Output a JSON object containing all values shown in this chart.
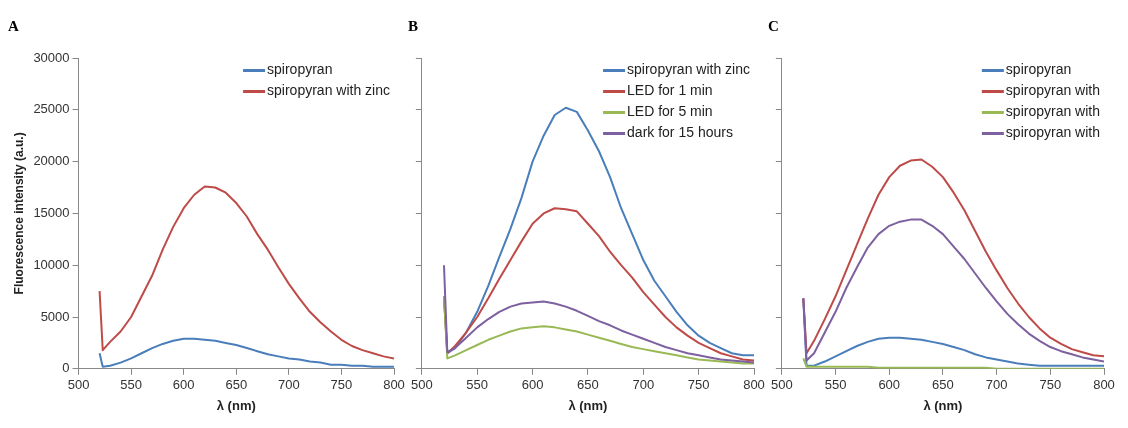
{
  "chart_data": [
    {
      "type": "line",
      "title": "A",
      "xlabel": "λ (nm)",
      "ylabel": "Fluorescence intensity (a.u.)",
      "xlim": [
        500,
        800
      ],
      "xticks": [
        500,
        550,
        600,
        650,
        700,
        750,
        800
      ],
      "ylim": [
        0,
        30000
      ],
      "yticks": [
        0,
        5000,
        10000,
        15000,
        20000,
        25000,
        30000
      ],
      "grid": false,
      "legend": "top right",
      "marker": "none",
      "x": [
        520,
        523,
        530,
        540,
        550,
        560,
        570,
        580,
        590,
        600,
        610,
        620,
        630,
        640,
        650,
        660,
        670,
        680,
        690,
        700,
        710,
        720,
        730,
        740,
        750,
        760,
        770,
        780,
        790,
        800
      ],
      "series": [
        {
          "name": "spiropyran",
          "color": "#4a7ebb",
          "values": [
            1500,
            200,
            300,
            600,
            1000,
            1500,
            2000,
            2400,
            2700,
            2900,
            2900,
            2800,
            2700,
            2500,
            2300,
            2000,
            1700,
            1400,
            1200,
            1000,
            900,
            700,
            600,
            400,
            400,
            300,
            300,
            200,
            200,
            200
          ]
        },
        {
          "name": "spiropyran with zinc",
          "color": "#be4b48",
          "values": [
            7500,
            1800,
            2600,
            3600,
            5000,
            7000,
            9000,
            11500,
            13700,
            15500,
            16800,
            17600,
            17500,
            17000,
            16000,
            14700,
            13000,
            11500,
            9800,
            8200,
            6800,
            5500,
            4500,
            3600,
            2800,
            2200,
            1800,
            1500,
            1200,
            1000
          ]
        }
      ]
    },
    {
      "type": "line",
      "title": "B",
      "xlabel": "λ (nm)",
      "xlim": [
        500,
        800
      ],
      "xticks": [
        500,
        550,
        600,
        650,
        700,
        750,
        800
      ],
      "ylim": [
        0,
        30000
      ],
      "yticks": [
        0,
        5000,
        10000,
        15000,
        20000,
        25000,
        30000
      ],
      "tick_labels": "x",
      "grid": false,
      "legend": "top right",
      "marker": "none",
      "x": [
        520,
        523,
        530,
        540,
        550,
        560,
        570,
        580,
        590,
        600,
        610,
        620,
        630,
        640,
        650,
        660,
        670,
        680,
        690,
        700,
        710,
        720,
        730,
        740,
        750,
        760,
        770,
        780,
        790,
        800
      ],
      "series": [
        {
          "name": "spiropyran with zinc",
          "color": "#4a7ebb",
          "values": [
            7000,
            1500,
            2000,
            3500,
            5500,
            8000,
            10800,
            13500,
            16500,
            20000,
            22500,
            24500,
            25200,
            24800,
            23000,
            21000,
            18500,
            15500,
            13000,
            10500,
            8500,
            7000,
            5500,
            4200,
            3200,
            2500,
            2000,
            1500,
            1300,
            1300
          ]
        },
        {
          "name": "LED for 1 min",
          "color": "#be4b48",
          "values": [
            7000,
            1500,
            2200,
            3500,
            5000,
            6800,
            8700,
            10500,
            12300,
            14000,
            15000,
            15500,
            15400,
            15200,
            14000,
            12800,
            11300,
            10000,
            8800,
            7400,
            6200,
            5000,
            4000,
            3200,
            2500,
            2000,
            1500,
            1200,
            900,
            800
          ]
        },
        {
          "name": "LED for 5 min",
          "color": "#98b954",
          "values": [
            7000,
            1000,
            1300,
            1800,
            2300,
            2800,
            3200,
            3600,
            3900,
            4000,
            4100,
            4000,
            3800,
            3600,
            3300,
            3000,
            2700,
            2400,
            2100,
            1900,
            1700,
            1500,
            1300,
            1100,
            900,
            800,
            700,
            600,
            500,
            500
          ]
        },
        {
          "name": "dark for 15 hours",
          "color": "#7d60a0",
          "values": [
            10000,
            1600,
            2000,
            3000,
            4000,
            4800,
            5500,
            6000,
            6300,
            6400,
            6500,
            6300,
            6000,
            5600,
            5100,
            4600,
            4200,
            3700,
            3300,
            2900,
            2500,
            2100,
            1800,
            1500,
            1300,
            1100,
            900,
            800,
            700,
            600
          ]
        }
      ]
    },
    {
      "type": "line",
      "title": "C",
      "xlabel": "λ (nm)",
      "xlim": [
        500,
        800
      ],
      "xticks": [
        500,
        550,
        600,
        650,
        700,
        750,
        800
      ],
      "ylim": [
        0,
        30000
      ],
      "yticks": [
        0,
        5000,
        10000,
        15000,
        20000,
        25000,
        30000
      ],
      "tick_labels": "x",
      "grid": false,
      "legend": "top right",
      "marker": "none",
      "x": [
        520,
        523,
        530,
        540,
        550,
        560,
        570,
        580,
        590,
        600,
        610,
        620,
        630,
        640,
        650,
        660,
        670,
        680,
        690,
        700,
        710,
        720,
        730,
        740,
        750,
        760,
        770,
        780,
        790,
        800
      ],
      "series": [
        {
          "name": "spiropyran",
          "color": "#4a7ebb",
          "values": [
            6800,
            300,
            300,
            700,
            1200,
            1700,
            2200,
            2600,
            2900,
            3000,
            3000,
            2900,
            2800,
            2600,
            2400,
            2100,
            1800,
            1400,
            1100,
            900,
            700,
            500,
            400,
            300,
            300,
            300,
            300,
            300,
            300,
            300
          ]
        },
        {
          "name": "spiropyran with",
          "color": "#be4b48",
          "values": [
            6800,
            1500,
            2700,
            4800,
            7000,
            9500,
            12000,
            14500,
            16800,
            18500,
            19600,
            20100,
            20200,
            19500,
            18500,
            17000,
            15300,
            13300,
            11300,
            9500,
            7800,
            6300,
            5000,
            3900,
            3000,
            2400,
            1900,
            1600,
            1300,
            1200
          ]
        },
        {
          "name": "spiropyran with",
          "color": "#98b954",
          "values": [
            1000,
            200,
            200,
            200,
            200,
            200,
            200,
            200,
            100,
            100,
            100,
            100,
            100,
            100,
            100,
            100,
            100,
            100,
            100,
            0,
            0,
            0,
            0,
            0,
            0,
            0,
            0,
            0,
            0,
            0
          ]
        },
        {
          "name": "spiropyran with",
          "color": "#7d60a0",
          "values": [
            6800,
            800,
            1500,
            3500,
            5500,
            7800,
            9800,
            11700,
            13000,
            13800,
            14200,
            14400,
            14400,
            13800,
            13000,
            11800,
            10600,
            9200,
            7800,
            6500,
            5300,
            4300,
            3400,
            2700,
            2100,
            1700,
            1400,
            1100,
            900,
            700
          ]
        }
      ]
    }
  ]
}
